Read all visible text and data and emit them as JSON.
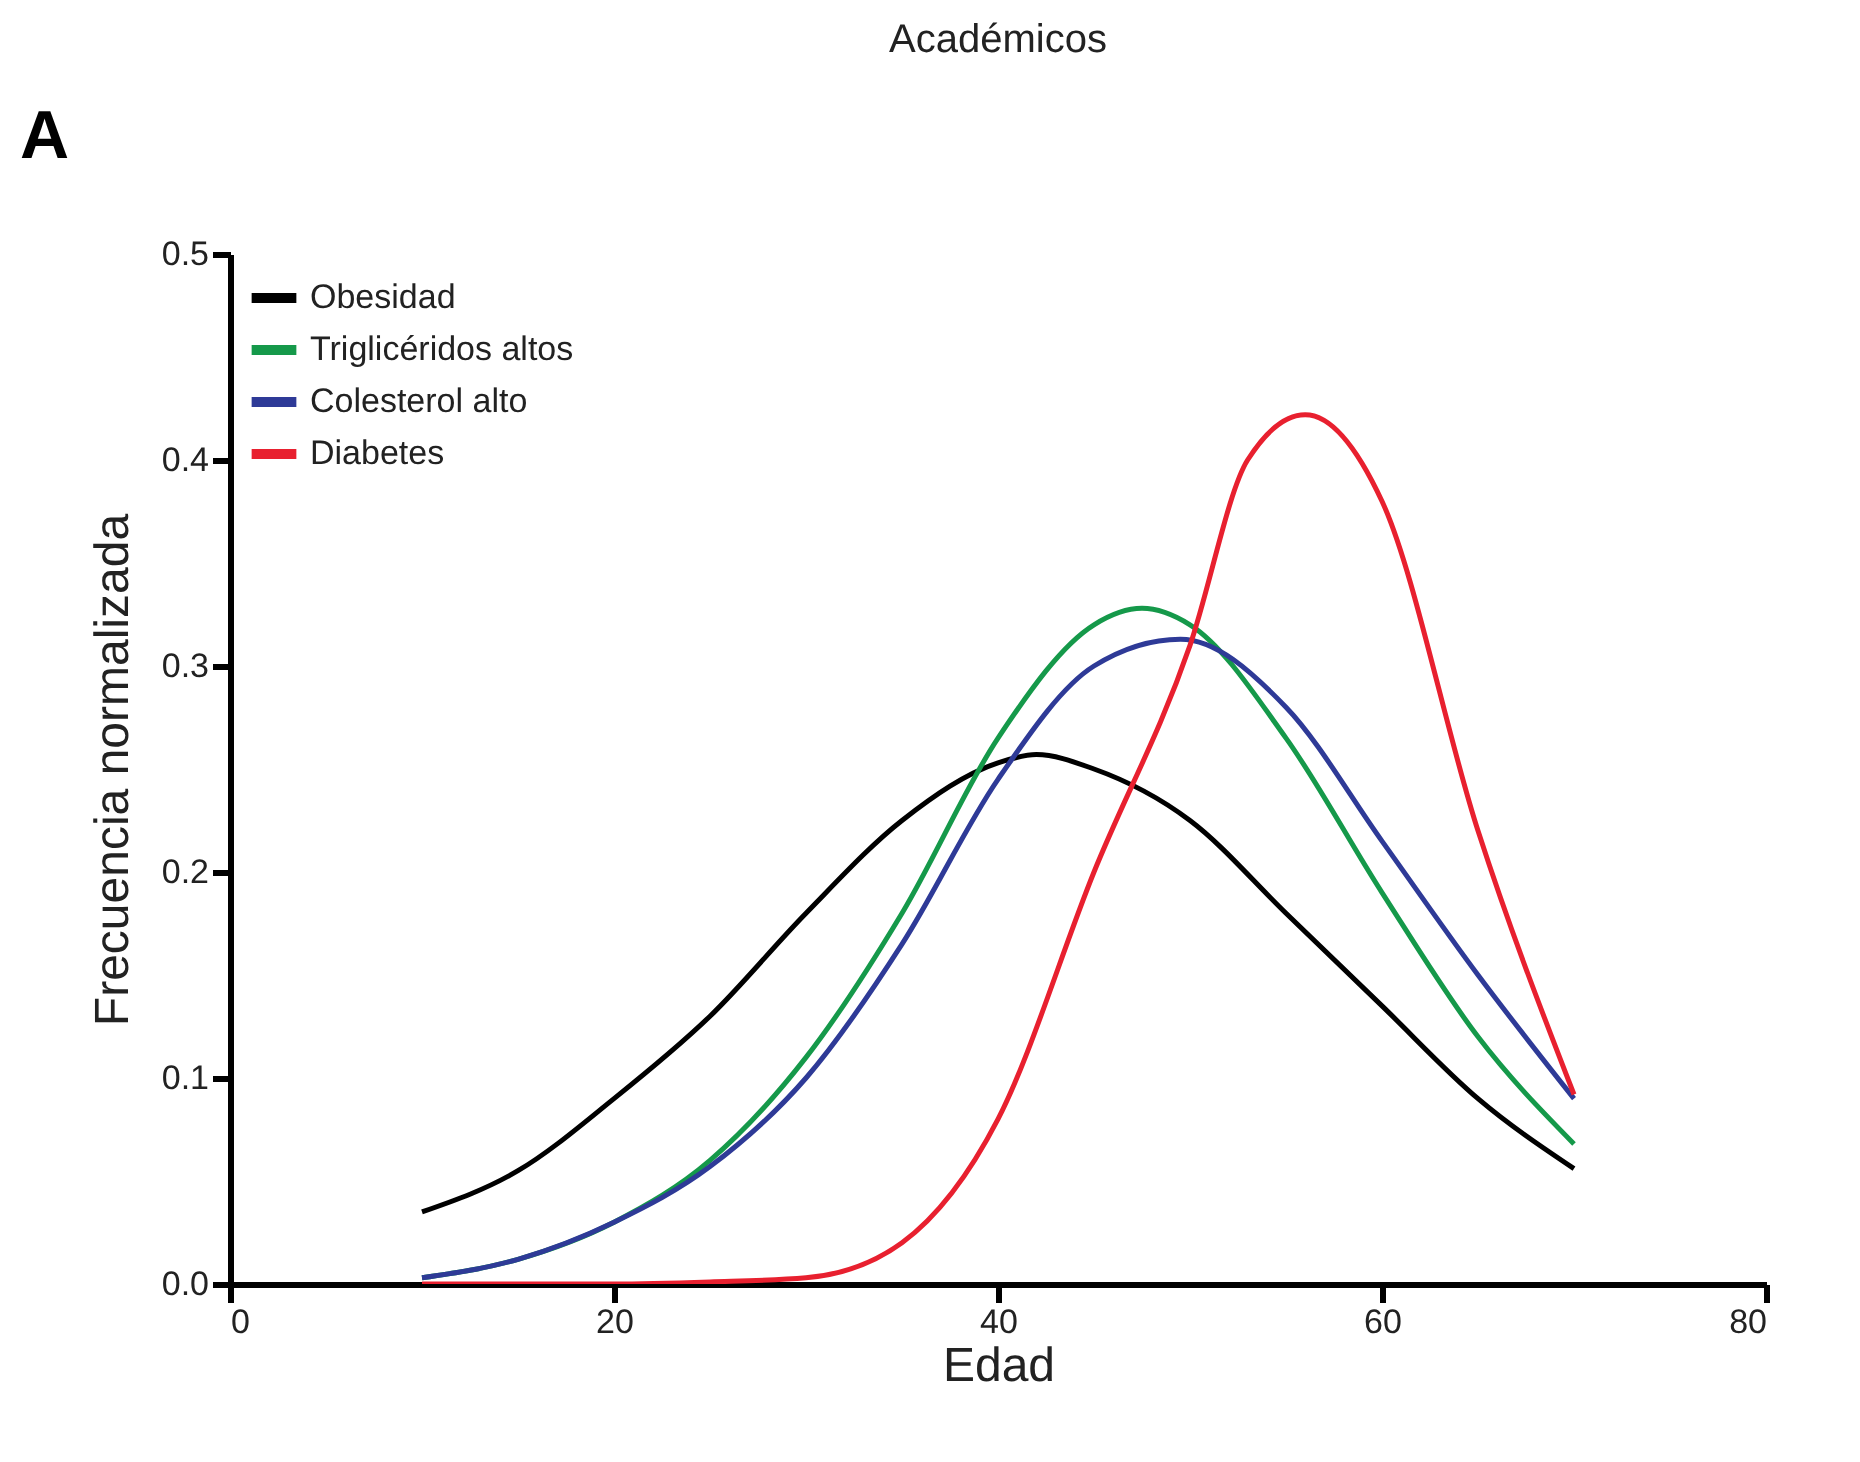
{
  "chart_data": {
    "type": "line",
    "title": "Académicos",
    "xlabel": "Edad",
    "ylabel": "Frecuencia normalizada",
    "annotations": [
      "A"
    ],
    "xlim": [
      0,
      80
    ],
    "xticks": [
      0,
      20,
      40,
      60,
      80
    ],
    "ylim": [
      0,
      0.5
    ],
    "yticks": [
      {
        "value": 0,
        "label": "0.0"
      },
      0.1,
      0.2,
      0.3,
      0.4,
      0.5
    ],
    "grid": false,
    "legend": "top left",
    "marker": "none",
    "line_style": "solid",
    "series": [
      {
        "name": "Obesidad",
        "color": "#000000",
        "x": [
          10,
          15,
          20,
          25,
          30,
          35,
          40,
          42,
          45,
          50,
          55,
          60,
          65,
          70
        ],
        "values": [
          0.035,
          0.055,
          0.09,
          0.13,
          0.18,
          0.225,
          0.253,
          0.257,
          0.25,
          0.225,
          0.18,
          0.135,
          0.09,
          0.056
        ]
      },
      {
        "name": "Triglicéridos altos",
        "color": "#15994a",
        "x": [
          10,
          15,
          20,
          25,
          30,
          35,
          40,
          45,
          47.5,
          50,
          55,
          60,
          65,
          70
        ],
        "values": [
          0.003,
          0.012,
          0.03,
          0.06,
          0.11,
          0.18,
          0.265,
          0.32,
          0.328,
          0.32,
          0.265,
          0.19,
          0.12,
          0.068
        ]
      },
      {
        "name": "Colesterol alto",
        "color": "#2e3a97",
        "x": [
          10,
          15,
          20,
          25,
          30,
          35,
          40,
          45,
          49.5,
          55,
          60,
          65,
          70
        ],
        "values": [
          0.003,
          0.012,
          0.03,
          0.057,
          0.1,
          0.165,
          0.245,
          0.3,
          0.313,
          0.28,
          0.215,
          0.15,
          0.09
        ]
      },
      {
        "name": "Diabetes",
        "color": "#e8202f",
        "x": [
          10,
          20,
          25,
          30,
          35,
          40,
          45,
          50,
          53,
          56,
          60,
          65,
          70
        ],
        "values": [
          0,
          0,
          0.001,
          0.003,
          0.02,
          0.08,
          0.2,
          0.31,
          0.4,
          0.422,
          0.38,
          0.22,
          0.092
        ]
      }
    ]
  }
}
